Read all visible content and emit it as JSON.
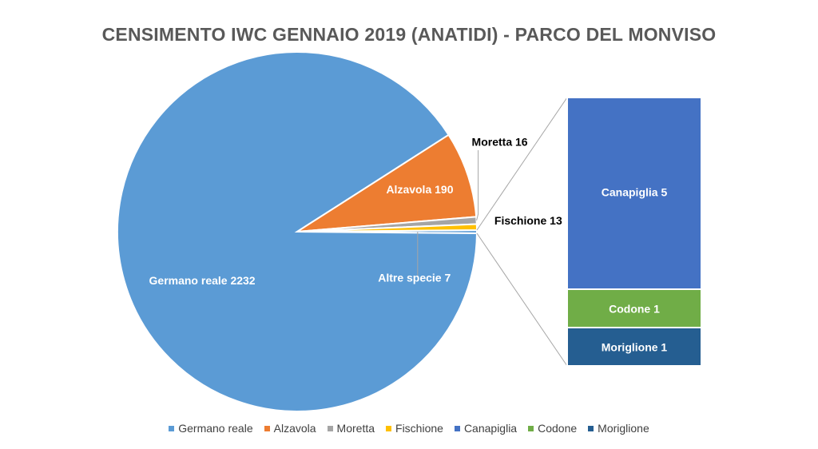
{
  "chart_data": {
    "type": "pie",
    "subtype": "pie-of-pie",
    "title": "CENSIMENTO IWC GENNAIO 2019 (ANATIDI) - PARCO DEL MONVISO",
    "main": [
      {
        "name": "Germano reale",
        "value": 2232,
        "label": "Germano reale 2232",
        "color": "#5B9BD5"
      },
      {
        "name": "Alzavola",
        "value": 190,
        "label": "Alzavola 190",
        "color": "#ED7D31"
      },
      {
        "name": "Moretta",
        "value": 16,
        "label": "Moretta  16",
        "color": "#A5A5A5"
      },
      {
        "name": "Fischione",
        "value": 13,
        "label": "Fischione  13",
        "color": "#FFC000"
      }
    ],
    "other": {
      "name": "Altre specie",
      "value": 7,
      "label": "Altre specie 7"
    },
    "breakdown": [
      {
        "name": "Canapiglia",
        "value": 5,
        "label": "Canapiglia 5",
        "color": "#4472C4"
      },
      {
        "name": "Codone",
        "value": 1,
        "label": "Codone 1",
        "color": "#70AD47"
      },
      {
        "name": "Moriglione",
        "value": 1,
        "label": "Moriglione 1",
        "color": "#255E91"
      }
    ],
    "legend": {
      "position": "bottom",
      "entries": [
        {
          "name": "Germano reale",
          "color": "#5B9BD5"
        },
        {
          "name": "Alzavola",
          "color": "#ED7D31"
        },
        {
          "name": "Moretta",
          "color": "#A5A5A5"
        },
        {
          "name": "Fischione",
          "color": "#FFC000"
        },
        {
          "name": "Canapiglia",
          "color": "#4472C4"
        },
        {
          "name": "Codone",
          "color": "#70AD47"
        },
        {
          "name": "Moriglione",
          "color": "#255E91"
        }
      ]
    }
  }
}
